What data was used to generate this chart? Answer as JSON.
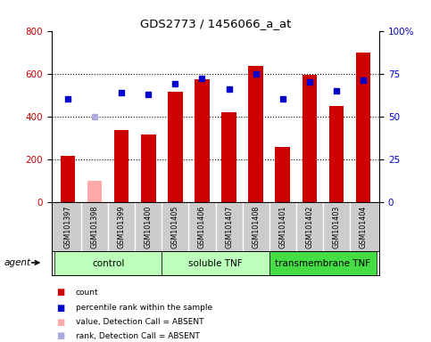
{
  "title": "GDS2773 / 1456066_a_at",
  "samples": [
    "GSM101397",
    "GSM101398",
    "GSM101399",
    "GSM101400",
    "GSM101405",
    "GSM101406",
    "GSM101407",
    "GSM101408",
    "GSM101401",
    "GSM101402",
    "GSM101403",
    "GSM101404"
  ],
  "counts": [
    215,
    null,
    335,
    315,
    515,
    575,
    420,
    635,
    255,
    595,
    450,
    700
  ],
  "absent_counts": [
    null,
    100,
    null,
    null,
    null,
    null,
    null,
    null,
    null,
    null,
    null,
    null
  ],
  "percentile_ranks": [
    60,
    null,
    64,
    63,
    69,
    72,
    66,
    75,
    60,
    70,
    65,
    71
  ],
  "absent_ranks": [
    null,
    50,
    null,
    null,
    null,
    null,
    null,
    null,
    null,
    null,
    null,
    null
  ],
  "ylim_left": [
    0,
    800
  ],
  "ylim_right": [
    0,
    100
  ],
  "yticks_left": [
    0,
    200,
    400,
    600,
    800
  ],
  "yticks_right": [
    0,
    25,
    50,
    75,
    100
  ],
  "ytick_labels_right": [
    "0",
    "25",
    "50",
    "75",
    "100%"
  ],
  "bar_color_present": "#cc0000",
  "bar_color_absent": "#ffaaaa",
  "dot_color_present": "#0000cc",
  "dot_color_absent": "#aaaadd",
  "tick_label_color_left": "#cc0000",
  "tick_label_color_right": "#0000cc",
  "group_labels": [
    "control",
    "soluble TNF",
    "transmembrane TNF"
  ],
  "group_ranges": [
    [
      0,
      4
    ],
    [
      4,
      8
    ],
    [
      8,
      12
    ]
  ],
  "group_colors": [
    "#bbffbb",
    "#bbffbb",
    "#44dd44"
  ],
  "sample_bg_color": "#cccccc",
  "plot_bg_color": "#ffffff"
}
